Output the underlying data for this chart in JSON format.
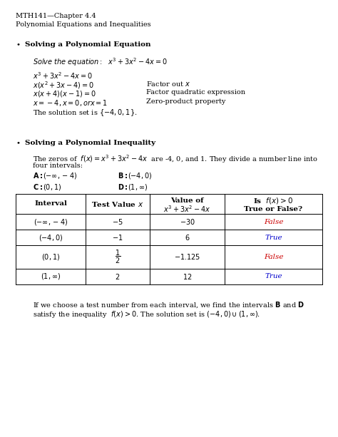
{
  "bg_color": "#ffffff",
  "header_line1": "MTH141—Chapter 4.4",
  "header_line2": "Polynomial Equations and Inequalities",
  "section1_title": "Solving a Polynomial Equation",
  "section2_title": "Solving a Polynomial Inequality",
  "true_color": "#0000cc",
  "false_color": "#cc0000",
  "fig_width": 4.74,
  "fig_height": 6.13,
  "dpi": 100
}
